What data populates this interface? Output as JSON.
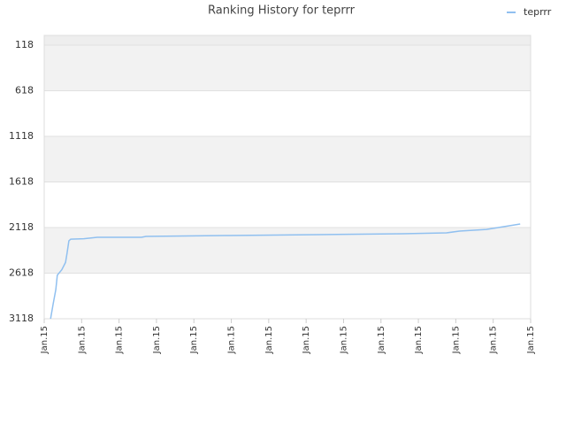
{
  "chart_data": {
    "type": "line",
    "title": "Ranking History for teprrr",
    "series": [
      {
        "name": "teprrr",
        "color": "#90c0f0",
        "x": [
          0.17,
          0.24,
          0.31,
          0.35,
          0.47,
          0.57,
          0.61,
          0.66,
          0.71,
          1.06,
          1.42,
          2.6,
          2.72,
          4.96,
          7.33,
          9.57,
          10.75,
          11.1,
          11.82,
          12.72
        ],
        "values": [
          3118,
          2950,
          2800,
          2640,
          2580,
          2500,
          2400,
          2264,
          2245,
          2240,
          2225,
          2225,
          2215,
          2205,
          2196,
          2186,
          2176,
          2157,
          2138,
          2079
        ]
      }
    ],
    "xlim": [
      0,
      13
    ],
    "xticks": [
      {
        "value": 0,
        "label": "Jan.15"
      },
      {
        "value": 1,
        "label": "Jan.15"
      },
      {
        "value": 2,
        "label": "Jan.15"
      },
      {
        "value": 3,
        "label": "Jan.15"
      },
      {
        "value": 4,
        "label": "Jan.15"
      },
      {
        "value": 5,
        "label": "Jan.15"
      },
      {
        "value": 6,
        "label": "Jan.15"
      },
      {
        "value": 7,
        "label": "Jan.15"
      },
      {
        "value": 8,
        "label": "Jan.15"
      },
      {
        "value": 9,
        "label": "Jan.15"
      },
      {
        "value": 10,
        "label": "Jan.15"
      },
      {
        "value": 11,
        "label": "Jan.15"
      },
      {
        "value": 12,
        "label": "Jan.15"
      },
      {
        "value": 13,
        "label": "Jan.15"
      }
    ],
    "ylim": [
      3118,
      11
    ],
    "yticks": [
      118,
      618,
      1118,
      1618,
      2118,
      2618,
      3118
    ],
    "grid": true,
    "legend": "top-right"
  }
}
